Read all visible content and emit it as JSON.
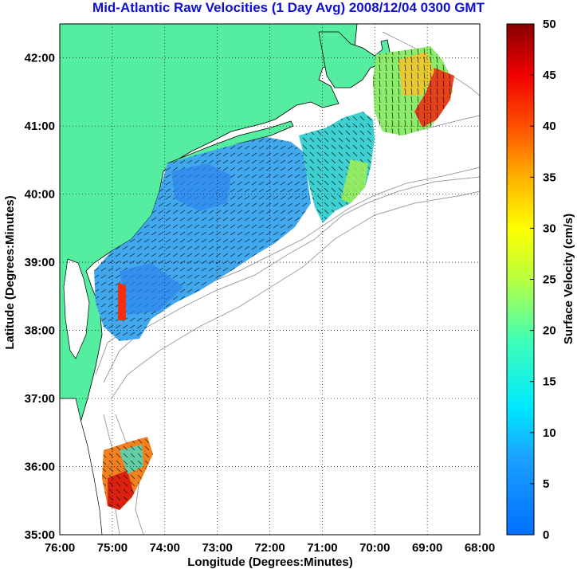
{
  "title": "Mid-Atlantic Raw Velocities (1 Day Avg) 2008/12/04 0300 GMT",
  "map": {
    "xlabel": "Longitude (Degrees:Minutes)",
    "ylabel": "Latitude (Degrees:Minutes)",
    "lon_range": [
      -76,
      -68
    ],
    "lat_range": [
      35,
      42.5
    ],
    "lon_ticks": [
      "76:00",
      "75:00",
      "74:00",
      "73:00",
      "72:00",
      "71:00",
      "70:00",
      "69:00",
      "68:00"
    ],
    "lat_ticks": [
      "35:00",
      "36:00",
      "37:00",
      "38:00",
      "39:00",
      "40:00",
      "41:00",
      "42:00"
    ],
    "grid": "dotted",
    "land_color": "#55eea0",
    "bathymetry_color": "#a0a0a0"
  },
  "colorbar": {
    "label": "Surface Velocity (cm/s)",
    "ticks": [
      "50",
      "45",
      "40",
      "35",
      "30",
      "25",
      "20",
      "15",
      "10",
      "5",
      "0"
    ],
    "range": [
      0,
      50
    ],
    "colormap": "jet"
  }
}
